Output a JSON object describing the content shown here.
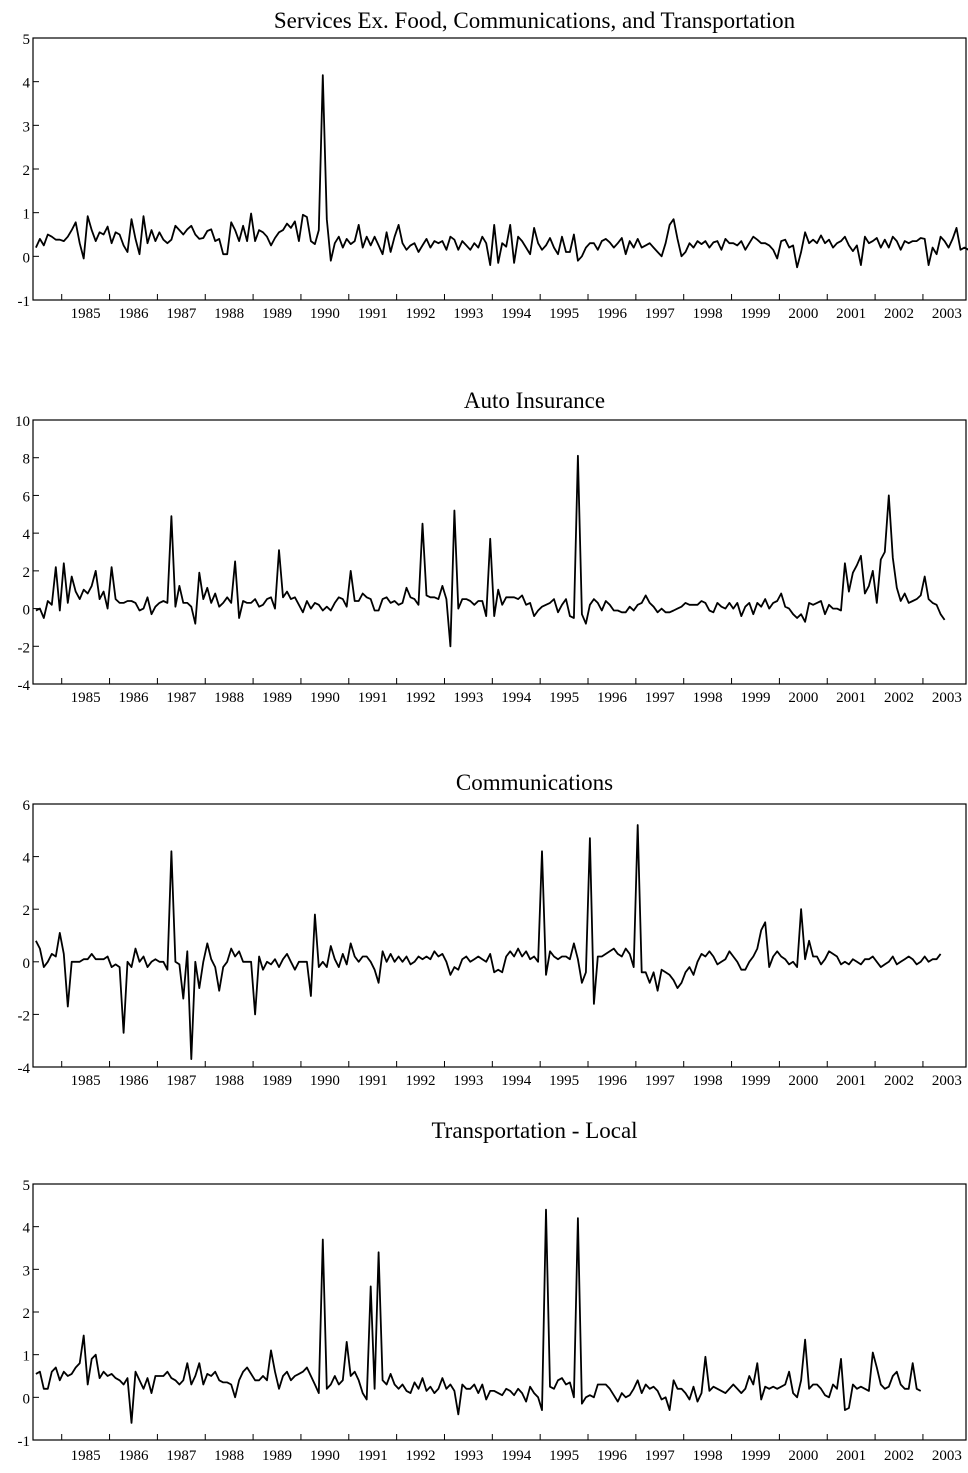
{
  "chart_data": [
    {
      "type": "line",
      "title": "Services Ex. Food, Communications, and Transportation",
      "xlabel": "",
      "ylabel": "",
      "ylim": [
        -1,
        5
      ],
      "yticks": [
        "-1",
        "0",
        "1",
        "2",
        "3",
        "4",
        "5"
      ],
      "xlim": [
        1984.4,
        2003.9
      ],
      "xticks": [
        "1985",
        "1986",
        "1987",
        "1988",
        "1989",
        "1990",
        "1991",
        "1992",
        "1993",
        "1994",
        "1995",
        "1996",
        "1997",
        "1998",
        "1999",
        "2000",
        "2001",
        "2002",
        "2003"
      ],
      "grid": false,
      "x_start": 1984.46,
      "x_step": 0.0833,
      "values": [
        0.2,
        0.4,
        0.25,
        0.5,
        0.45,
        0.38,
        0.38,
        0.35,
        0.45,
        0.6,
        0.78,
        0.3,
        -0.05,
        0.92,
        0.6,
        0.35,
        0.55,
        0.5,
        0.68,
        0.3,
        0.55,
        0.5,
        0.25,
        0.1,
        0.85,
        0.4,
        0.05,
        0.92,
        0.3,
        0.6,
        0.35,
        0.55,
        0.38,
        0.3,
        0.38,
        0.7,
        0.6,
        0.5,
        0.62,
        0.7,
        0.5,
        0.4,
        0.42,
        0.58,
        0.62,
        0.35,
        0.4,
        0.05,
        0.05,
        0.78,
        0.6,
        0.35,
        0.7,
        0.35,
        0.98,
        0.35,
        0.6,
        0.55,
        0.45,
        0.25,
        0.42,
        0.55,
        0.6,
        0.75,
        0.65,
        0.8,
        0.35,
        0.95,
        0.9,
        0.35,
        0.28,
        0.6,
        4.15,
        0.85,
        -0.1,
        0.3,
        0.45,
        0.2,
        0.4,
        0.28,
        0.35,
        0.72,
        0.2,
        0.45,
        0.25,
        0.45,
        0.25,
        0.05,
        0.55,
        0.1,
        0.45,
        0.72,
        0.3,
        0.15,
        0.25,
        0.3,
        0.1,
        0.25,
        0.4,
        0.2,
        0.35,
        0.3,
        0.35,
        0.15,
        0.45,
        0.38,
        0.15,
        0.35,
        0.25,
        0.15,
        0.3,
        0.2,
        0.45,
        0.3,
        -0.2,
        0.72,
        -0.15,
        0.3,
        0.22,
        0.72,
        -0.15,
        0.45,
        0.35,
        0.2,
        0.05,
        0.65,
        0.3,
        0.15,
        0.25,
        0.42,
        0.2,
        0.05,
        0.45,
        0.1,
        0.1,
        0.5,
        -0.1,
        0.0,
        0.2,
        0.3,
        0.3,
        0.15,
        0.35,
        0.4,
        0.32,
        0.2,
        0.3,
        0.42,
        0.05,
        0.35,
        0.2,
        0.4,
        0.2,
        0.25,
        0.3,
        0.2,
        0.1,
        0.0,
        0.3,
        0.72,
        0.85,
        0.4,
        0.0,
        0.1,
        0.3,
        0.2,
        0.35,
        0.28,
        0.35,
        0.2,
        0.32,
        0.35,
        0.15,
        0.4,
        0.3,
        0.3,
        0.25,
        0.35,
        0.15,
        0.3,
        0.45,
        0.38,
        0.3,
        0.3,
        0.25,
        0.15,
        -0.05,
        0.35,
        0.38,
        0.2,
        0.25,
        -0.25,
        0.1,
        0.55,
        0.3,
        0.38,
        0.3,
        0.48,
        0.3,
        0.38,
        0.2,
        0.3,
        0.35,
        0.45,
        0.25,
        0.12,
        0.25,
        -0.2,
        0.45,
        0.3,
        0.35,
        0.42,
        0.2,
        0.38,
        0.2,
        0.45,
        0.35,
        0.15,
        0.35,
        0.3,
        0.35,
        0.35,
        0.42,
        0.4,
        -0.2,
        0.2,
        0.05,
        0.45,
        0.35,
        0.2,
        0.4,
        0.65,
        0.15,
        0.2,
        0.15
      ]
    },
    {
      "type": "line",
      "title": "Auto Insurance",
      "xlabel": "",
      "ylabel": "",
      "ylim": [
        -4,
        10
      ],
      "yticks": [
        "-4",
        "-2",
        "0",
        "2",
        "4",
        "6",
        "8",
        "10"
      ],
      "xlim": [
        1984.4,
        2003.9
      ],
      "xticks": [
        "1985",
        "1986",
        "1987",
        "1988",
        "1989",
        "1990",
        "1991",
        "1992",
        "1993",
        "1994",
        "1995",
        "1996",
        "1997",
        "1998",
        "1999",
        "2000",
        "2001",
        "2002",
        "2003"
      ],
      "grid": false,
      "x_start": 1984.46,
      "x_step": 0.0833,
      "values": [
        -0.1,
        0.0,
        -0.5,
        0.4,
        0.2,
        2.2,
        -0.1,
        2.4,
        0.3,
        1.7,
        0.9,
        0.5,
        1.0,
        0.8,
        1.2,
        2.0,
        0.5,
        0.9,
        0.0,
        2.2,
        0.5,
        0.3,
        0.3,
        0.4,
        0.4,
        0.3,
        -0.1,
        0.0,
        0.6,
        -0.3,
        0.1,
        0.3,
        0.4,
        0.3,
        4.9,
        0.1,
        1.2,
        0.3,
        0.3,
        0.1,
        -0.8,
        1.9,
        0.5,
        1.1,
        0.3,
        0.8,
        0.1,
        0.3,
        0.6,
        0.3,
        2.5,
        -0.5,
        0.4,
        0.3,
        0.3,
        0.5,
        0.1,
        0.2,
        0.5,
        0.6,
        0.0,
        3.1,
        0.6,
        0.9,
        0.5,
        0.6,
        0.2,
        -0.2,
        0.4,
        0.0,
        0.3,
        0.2,
        -0.1,
        0.1,
        -0.1,
        0.3,
        0.6,
        0.5,
        0.1,
        2.0,
        0.4,
        0.4,
        0.8,
        0.6,
        0.5,
        -0.1,
        -0.1,
        0.5,
        0.6,
        0.3,
        0.4,
        0.2,
        0.3,
        1.1,
        0.6,
        0.5,
        0.2,
        4.5,
        0.7,
        0.6,
        0.6,
        0.5,
        1.2,
        0.5,
        -2.0,
        5.2,
        0.0,
        0.5,
        0.5,
        0.4,
        0.2,
        0.4,
        0.4,
        -0.4,
        3.7,
        -0.4,
        1.0,
        0.2,
        0.6,
        0.6,
        0.6,
        0.5,
        0.7,
        0.2,
        0.3,
        -0.4,
        -0.1,
        0.1,
        0.2,
        0.3,
        0.5,
        -0.2,
        0.2,
        0.5,
        -0.4,
        -0.5,
        8.1,
        -0.3,
        -0.8,
        0.2,
        0.5,
        0.3,
        -0.1,
        0.4,
        0.2,
        -0.1,
        -0.1,
        -0.2,
        -0.2,
        0.1,
        -0.1,
        0.2,
        0.3,
        0.7,
        0.3,
        0.1,
        -0.2,
        0.0,
        -0.2,
        -0.2,
        -0.1,
        0.0,
        0.1,
        0.3,
        0.2,
        0.2,
        0.2,
        0.4,
        0.3,
        -0.1,
        -0.2,
        0.3,
        0.1,
        0.0,
        0.3,
        0.0,
        0.3,
        -0.4,
        0.1,
        0.3,
        -0.3,
        0.3,
        0.1,
        0.5,
        0.0,
        0.3,
        0.4,
        0.8,
        0.1,
        0.0,
        -0.3,
        -0.5,
        -0.3,
        -0.7,
        0.3,
        0.2,
        0.3,
        0.4,
        -0.3,
        0.2,
        0.0,
        0.0,
        -0.1,
        2.4,
        0.9,
        1.9,
        2.3,
        2.8,
        0.8,
        1.2,
        2.0,
        0.3,
        2.6,
        3.0,
        6.0,
        2.7,
        1.1,
        0.4,
        0.8,
        0.3,
        0.4,
        0.5,
        0.7,
        1.7,
        0.5,
        0.3,
        0.2,
        -0.3,
        -0.6
      ]
    },
    {
      "type": "line",
      "title": "Communications",
      "xlabel": "",
      "ylabel": "",
      "ylim": [
        -4,
        6
      ],
      "yticks": [
        "-4",
        "-2",
        "0",
        "2",
        "4",
        "6"
      ],
      "xlim": [
        1984.4,
        2003.9
      ],
      "xticks": [
        "1985",
        "1986",
        "1987",
        "1988",
        "1989",
        "1990",
        "1991",
        "1992",
        "1993",
        "1994",
        "1995",
        "1996",
        "1997",
        "1998",
        "1999",
        "2000",
        "2001",
        "2002",
        "2003"
      ],
      "grid": false,
      "x_start": 1984.46,
      "x_step": 0.0833,
      "values": [
        0.8,
        0.5,
        -0.2,
        0.0,
        0.3,
        0.2,
        1.1,
        0.3,
        -1.7,
        0.0,
        0.0,
        0.0,
        0.1,
        0.1,
        0.3,
        0.1,
        0.1,
        0.1,
        0.2,
        -0.2,
        -0.1,
        -0.2,
        -2.7,
        0.0,
        -0.2,
        0.5,
        0.0,
        0.2,
        -0.2,
        0.0,
        0.1,
        0.0,
        0.0,
        -0.3,
        4.2,
        0.0,
        -0.1,
        -1.4,
        0.4,
        -3.7,
        0.0,
        -1.0,
        0.0,
        0.7,
        0.1,
        -0.2,
        -1.1,
        -0.2,
        0.0,
        0.5,
        0.2,
        0.4,
        0.0,
        0.0,
        0.0,
        -2.0,
        0.2,
        -0.3,
        0.0,
        -0.1,
        0.1,
        -0.2,
        0.1,
        0.3,
        0.0,
        -0.3,
        0.0,
        0.0,
        0.0,
        -1.3,
        1.8,
        -0.2,
        0.0,
        -0.2,
        0.6,
        0.1,
        -0.2,
        0.3,
        -0.1,
        0.7,
        0.2,
        0.0,
        0.2,
        0.2,
        0.0,
        -0.3,
        -0.8,
        0.4,
        0.0,
        0.3,
        0.0,
        0.2,
        0.0,
        0.2,
        -0.1,
        0.0,
        0.2,
        0.1,
        0.2,
        0.1,
        0.4,
        0.2,
        0.3,
        0.0,
        -0.5,
        -0.2,
        -0.3,
        0.1,
        0.2,
        0.0,
        0.1,
        0.2,
        0.1,
        0.0,
        0.3,
        -0.4,
        -0.3,
        -0.4,
        0.2,
        0.4,
        0.2,
        0.5,
        0.2,
        0.4,
        0.1,
        0.2,
        0.0,
        4.2,
        -0.5,
        0.4,
        0.2,
        0.1,
        0.2,
        0.2,
        0.1,
        0.7,
        0.1,
        -0.8,
        -0.4,
        4.7,
        -1.6,
        0.2,
        0.2,
        0.3,
        0.4,
        0.5,
        0.3,
        0.2,
        0.5,
        0.3,
        -0.2,
        5.2,
        -0.4,
        -0.4,
        -0.8,
        -0.4,
        -1.1,
        -0.3,
        -0.4,
        -0.5,
        -0.7,
        -1.0,
        -0.8,
        -0.4,
        -0.2,
        -0.5,
        0.0,
        0.3,
        0.2,
        0.4,
        0.2,
        -0.1,
        0.0,
        0.1,
        0.4,
        0.2,
        0.0,
        -0.3,
        -0.3,
        0.0,
        0.2,
        0.5,
        1.2,
        1.5,
        -0.2,
        0.2,
        0.4,
        0.2,
        0.1,
        -0.1,
        0.0,
        -0.2,
        2.0,
        0.1,
        0.8,
        0.2,
        0.2,
        -0.1,
        0.1,
        0.4,
        0.3,
        0.2,
        -0.1,
        0.0,
        -0.1,
        0.1,
        0.0,
        -0.1,
        0.1,
        0.1,
        0.2,
        0.0,
        -0.2,
        -0.1,
        0.0,
        0.2,
        -0.1,
        0.0,
        0.1,
        0.2,
        0.1,
        -0.1,
        0.0,
        0.2,
        0.0,
        0.1,
        0.1,
        0.3
      ]
    },
    {
      "type": "line",
      "title": "Transportation - Local",
      "xlabel": "",
      "ylabel": "",
      "ylim": [
        -1,
        5
      ],
      "yticks": [
        "-1",
        "0",
        "1",
        "2",
        "3",
        "4",
        "5"
      ],
      "xlim": [
        1984.4,
        2003.9
      ],
      "xticks": [
        "1985",
        "1986",
        "1987",
        "1988",
        "1989",
        "1990",
        "1991",
        "1992",
        "1993",
        "1994",
        "1995",
        "1996",
        "1997",
        "1998",
        "1999",
        "2000",
        "2001",
        "2002",
        "2003"
      ],
      "grid": false,
      "x_start": 1984.46,
      "x_step": 0.0833,
      "values": [
        0.55,
        0.6,
        0.2,
        0.2,
        0.6,
        0.7,
        0.4,
        0.6,
        0.5,
        0.55,
        0.7,
        0.8,
        1.45,
        0.3,
        0.9,
        1.0,
        0.45,
        0.6,
        0.5,
        0.55,
        0.45,
        0.4,
        0.3,
        0.45,
        -0.6,
        0.6,
        0.4,
        0.2,
        0.45,
        0.1,
        0.5,
        0.5,
        0.5,
        0.6,
        0.45,
        0.4,
        0.3,
        0.4,
        0.8,
        0.3,
        0.5,
        0.8,
        0.3,
        0.55,
        0.5,
        0.6,
        0.4,
        0.35,
        0.35,
        0.3,
        0.0,
        0.4,
        0.6,
        0.7,
        0.55,
        0.4,
        0.4,
        0.5,
        0.4,
        1.1,
        0.6,
        0.2,
        0.5,
        0.6,
        0.4,
        0.5,
        0.55,
        0.6,
        0.7,
        0.5,
        0.3,
        0.1,
        3.7,
        0.2,
        0.3,
        0.5,
        0.3,
        0.4,
        1.3,
        0.5,
        0.6,
        0.4,
        0.1,
        -0.05,
        2.6,
        0.2,
        3.4,
        0.4,
        0.3,
        0.55,
        0.3,
        0.2,
        0.3,
        0.15,
        0.1,
        0.35,
        0.2,
        0.45,
        0.15,
        0.25,
        0.1,
        0.2,
        0.45,
        0.2,
        0.3,
        0.15,
        -0.4,
        0.3,
        0.2,
        0.2,
        0.3,
        0.1,
        0.3,
        -0.05,
        0.15,
        0.15,
        0.1,
        0.05,
        0.2,
        0.15,
        0.05,
        0.2,
        0.1,
        -0.1,
        0.25,
        0.1,
        0.0,
        -0.3,
        4.4,
        0.25,
        0.2,
        0.4,
        0.45,
        0.3,
        0.35,
        0.0,
        4.2,
        -0.15,
        0.0,
        0.05,
        0.0,
        0.3,
        0.3,
        0.3,
        0.2,
        0.05,
        -0.1,
        0.1,
        0.0,
        0.05,
        0.2,
        0.4,
        0.1,
        0.3,
        0.2,
        0.25,
        0.15,
        -0.05,
        0.0,
        -0.3,
        0.4,
        0.2,
        0.2,
        0.1,
        -0.05,
        0.25,
        -0.1,
        0.1,
        0.95,
        0.15,
        0.25,
        0.2,
        0.15,
        0.1,
        0.2,
        0.3,
        0.2,
        0.1,
        0.2,
        0.5,
        0.3,
        0.8,
        -0.05,
        0.25,
        0.2,
        0.25,
        0.2,
        0.25,
        0.3,
        0.6,
        0.1,
        0.0,
        0.4,
        1.35,
        0.2,
        0.3,
        0.3,
        0.2,
        0.05,
        0.0,
        0.3,
        0.2,
        0.9,
        -0.3,
        -0.25,
        0.3,
        0.2,
        0.25,
        0.2,
        0.15,
        1.05,
        0.7,
        0.3,
        0.2,
        0.25,
        0.5,
        0.6,
        0.3,
        0.2,
        0.2,
        0.8,
        0.2,
        0.15
      ]
    }
  ]
}
